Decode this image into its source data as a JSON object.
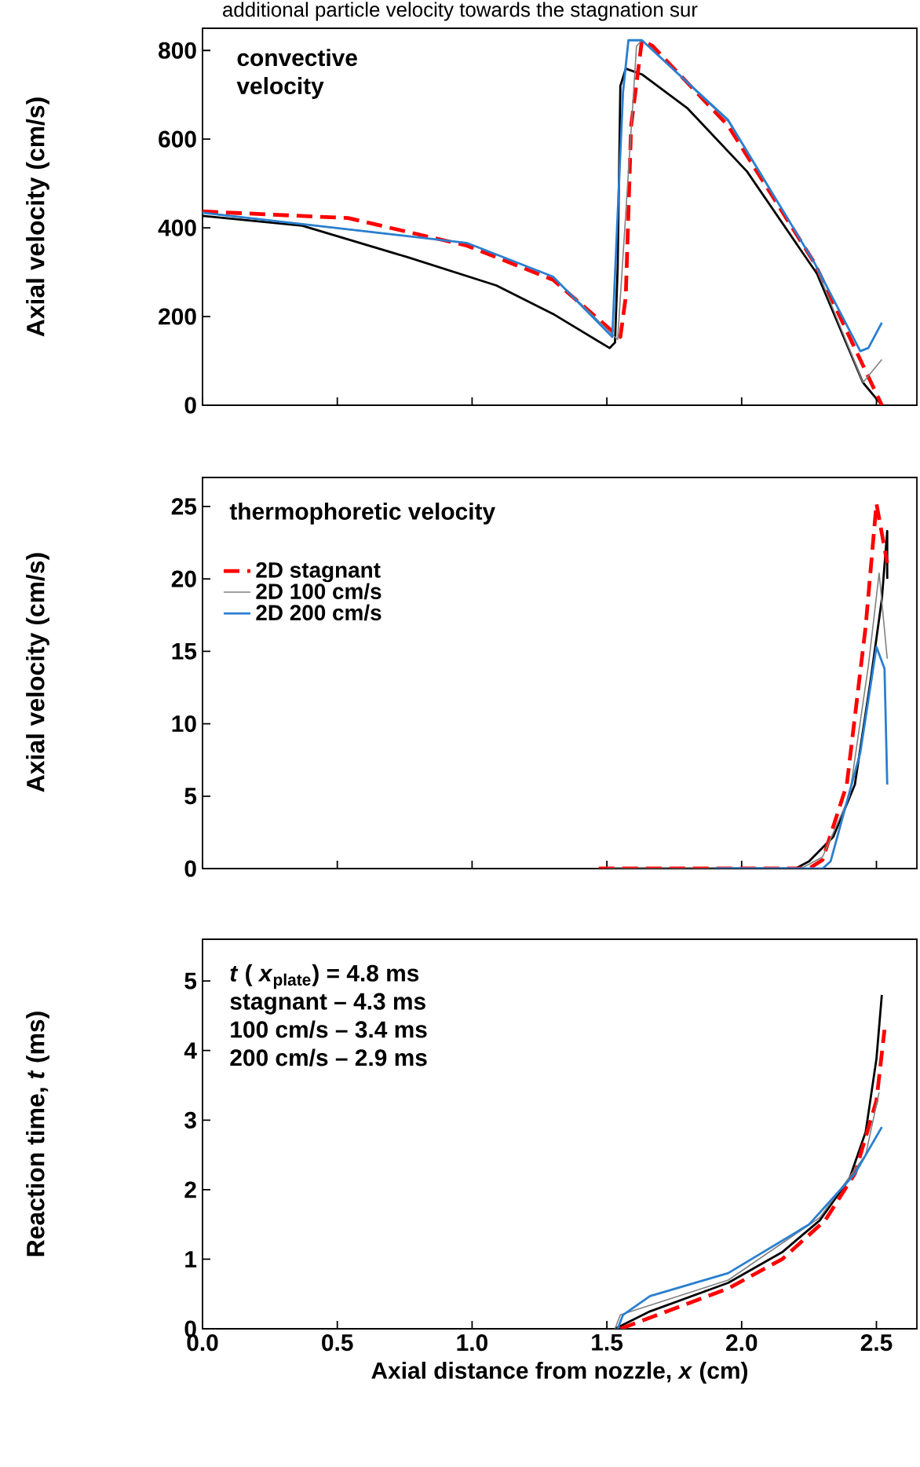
{
  "chart_data": [
    {
      "type": "line",
      "title": "convective velocity",
      "ylabel": "Axial velocity (cm/s)",
      "annotations": [
        "additional particle velocity towards the stagnation sur"
      ],
      "tick_labels": "y",
      "line_style": "solid",
      "xlim": [
        0,
        2.65
      ],
      "xticks": [
        {
          "value": 0,
          "label": null
        },
        {
          "value": 0.5,
          "label": null
        },
        {
          "value": 1,
          "label": null
        },
        {
          "value": 1.5,
          "label": null
        },
        {
          "value": 2,
          "label": null
        },
        {
          "value": 2.5,
          "label": null
        }
      ],
      "ylim": [
        0,
        850
      ],
      "yticks": [
        0,
        200,
        400,
        600,
        800
      ],
      "series": [
        {
          "color": "#000000",
          "x": [
            0,
            0.37,
            0.76,
            1.09,
            1.3,
            1.51,
            1.53,
            1.54,
            1.55,
            1.57,
            1.63,
            1.8,
            2.02,
            2.28,
            2.45,
            2.52
          ],
          "values": [
            427,
            405,
            334,
            270,
            206,
            129,
            141,
            309,
            720,
            759,
            746,
            669,
            527,
            296,
            51,
            0
          ]
        },
        {
          "color": "#ff0000",
          "line_style": "dashed",
          "x": [
            0,
            0.54,
            0.98,
            1.3,
            1.52,
            1.55,
            1.57,
            1.59,
            1.63,
            1.67,
            1.95,
            2.27,
            2.45,
            2.52
          ],
          "values": [
            437,
            422,
            360,
            283,
            167,
            154,
            244,
            630,
            823,
            810,
            630,
            321,
            90,
            0
          ]
        },
        {
          "color": "#808080",
          "x": [
            0,
            0.98,
            1.3,
            1.54,
            1.61,
            1.63,
            1.95,
            2.27,
            2.45,
            2.52
          ],
          "values": [
            434,
            366,
            290,
            148,
            810,
            823,
            640,
            321,
            51,
            103
          ]
        },
        {
          "color": "#2a7fd0",
          "x": [
            0,
            0.98,
            1.3,
            1.52,
            1.56,
            1.58,
            1.63,
            1.95,
            2.27,
            2.44,
            2.47,
            2.52
          ],
          "values": [
            434,
            366,
            290,
            154,
            707,
            823,
            823,
            643,
            321,
            122,
            129,
            186
          ]
        }
      ]
    },
    {
      "type": "line",
      "ylabel": "Axial velocity (cm/s)",
      "legend_title": "thermophoretic velocity",
      "legend": "top left",
      "tick_labels": "y",
      "line_style": "solid",
      "xlim": [
        0,
        2.65
      ],
      "xticks": [
        {
          "value": 0,
          "label": null
        },
        {
          "value": 0.5,
          "label": null
        },
        {
          "value": 1,
          "label": null
        },
        {
          "value": 1.5,
          "label": null
        },
        {
          "value": 2,
          "label": null
        },
        {
          "value": 2.5,
          "label": null
        }
      ],
      "ylim": [
        0,
        27
      ],
      "yticks": [
        0,
        5,
        10,
        15,
        20,
        25
      ],
      "series": [
        {
          "color": "#000000",
          "x": [
            1.5,
            2.2,
            2.25,
            2.34,
            2.42,
            2.48,
            2.52,
            2.54,
            2.54
          ],
          "values": [
            0,
            0,
            0.5,
            2.2,
            5.8,
            13.2,
            18.6,
            23.3,
            20
          ]
        },
        {
          "name": "2D stagnant",
          "color": "#ff0000",
          "line_style": "dashed",
          "x": [
            1.47,
            2.25,
            2.3,
            2.39,
            2.46,
            2.5,
            2.54
          ],
          "values": [
            0,
            0,
            0.6,
            5.8,
            16.7,
            25.2,
            21.1
          ]
        },
        {
          "name": "2D 100 cm/s",
          "color": "#808080",
          "x": [
            1.5,
            2.22,
            2.3,
            2.4,
            2.47,
            2.51,
            2.54
          ],
          "values": [
            0,
            0,
            0.8,
            5,
            14,
            20.4,
            14.5
          ]
        },
        {
          "name": "2D 200 cm/s",
          "color": "#2a7fd0",
          "x": [
            1.9,
            2.3,
            2.33,
            2.44,
            2.5,
            2.53,
            2.54
          ],
          "values": [
            0,
            0,
            0.5,
            8,
            15.3,
            13.8,
            5.8
          ]
        }
      ]
    },
    {
      "type": "line",
      "xlabel": "Axial distance from nozzle, *x* (cm)",
      "ylabel": "Reaction time, *t* (ms)",
      "annotations": [
        "*t* ( *x*$_{plate}$) = 4.8 ms",
        "stagnant – 4.3 ms",
        "100 cm/s – 3.4 ms",
        "200 cm/s – 2.9 ms"
      ],
      "line_style": "solid",
      "xlim": [
        0,
        2.65
      ],
      "xticks": [
        {
          "value": 0,
          "label": "0.0"
        },
        {
          "value": 0.5,
          "label": "0.5"
        },
        {
          "value": 1,
          "label": "1.0"
        },
        {
          "value": 1.5,
          "label": "1.5"
        },
        {
          "value": 2,
          "label": "2.0"
        },
        {
          "value": 2.5,
          "label": "2.5"
        }
      ],
      "ylim": [
        0,
        5.6
      ],
      "yticks": [
        0,
        1,
        2,
        3,
        4,
        5
      ],
      "series": [
        {
          "color": "#000000",
          "x": [
            1.53,
            1.66,
            1.95,
            2.15,
            2.29,
            2.4,
            2.46,
            2.5,
            2.52
          ],
          "values": [
            0,
            0.25,
            0.66,
            1.1,
            1.56,
            2.16,
            2.83,
            3.88,
            4.8
          ]
        },
        {
          "color": "#ff0000",
          "line_style": "dashed",
          "x": [
            1.55,
            1.95,
            2.15,
            2.31,
            2.42,
            2.5,
            2.53
          ],
          "values": [
            0,
            0.58,
            1.0,
            1.56,
            2.23,
            3.28,
            4.3
          ]
        },
        {
          "color": "#808080",
          "x": [
            1.53,
            1.55,
            1.95,
            2.29,
            2.46,
            2.51
          ],
          "values": [
            0,
            0.2,
            0.7,
            1.6,
            2.5,
            3.4
          ]
        },
        {
          "color": "#2a7fd0",
          "x": [
            1.54,
            1.56,
            1.66,
            1.95,
            2.25,
            2.42,
            2.52
          ],
          "values": [
            0,
            0.2,
            0.47,
            0.8,
            1.5,
            2.23,
            2.9
          ]
        }
      ]
    }
  ]
}
